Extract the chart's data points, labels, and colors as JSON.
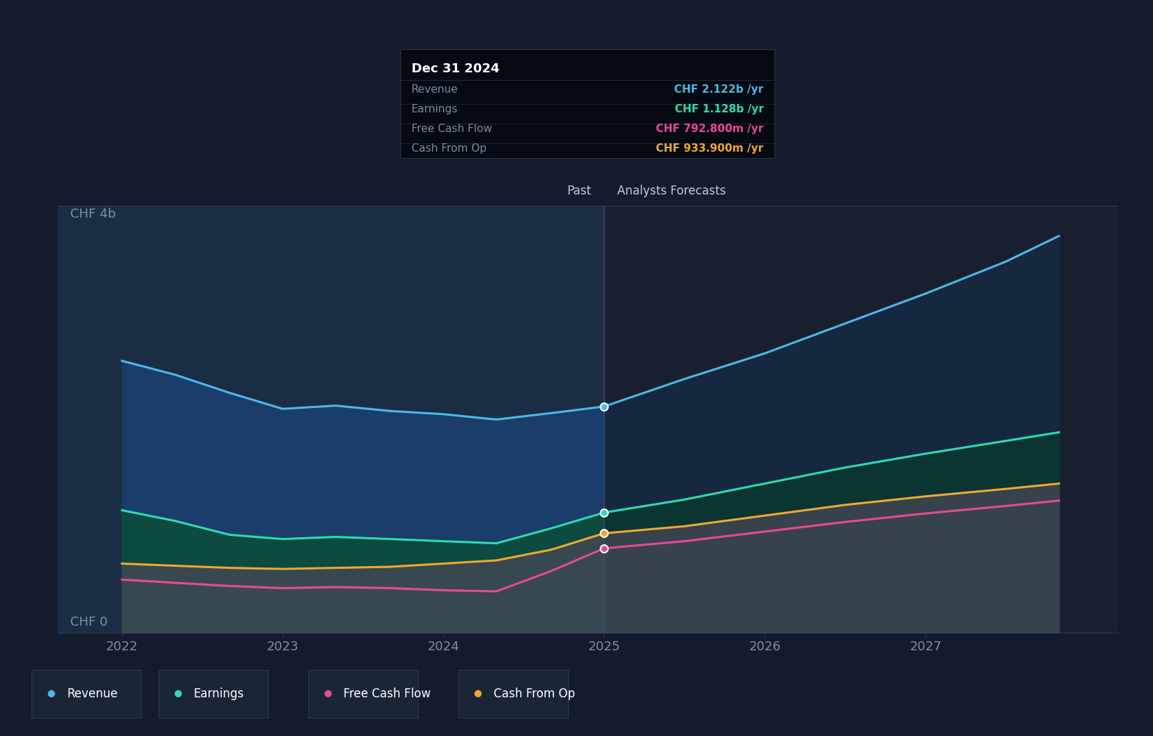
{
  "bg_color": "#141b2d",
  "plot_bg_past": "#1b2d45",
  "plot_bg_forecast": "#182030",
  "grid_color": "#2a3a55",
  "x_years": [
    2022.0,
    2022.33,
    2022.67,
    2023.0,
    2023.33,
    2023.67,
    2024.0,
    2024.33,
    2024.67,
    2025.0,
    2025.5,
    2026.0,
    2026.5,
    2027.0,
    2027.5,
    2027.83
  ],
  "x_ticks": [
    2022,
    2023,
    2024,
    2025,
    2026,
    2027
  ],
  "x_min": 2021.6,
  "x_max": 2028.2,
  "y_min": 0.0,
  "y_max": 4.0,
  "past_end": 2025.0,
  "revenue": [
    2.55,
    2.42,
    2.25,
    2.1,
    2.13,
    2.08,
    2.05,
    2.0,
    2.06,
    2.122,
    2.38,
    2.62,
    2.9,
    3.18,
    3.48,
    3.72
  ],
  "earnings": [
    1.15,
    1.05,
    0.92,
    0.88,
    0.9,
    0.88,
    0.86,
    0.84,
    0.98,
    1.128,
    1.25,
    1.4,
    1.55,
    1.68,
    1.8,
    1.88
  ],
  "free_cash_flow": [
    0.5,
    0.47,
    0.44,
    0.42,
    0.43,
    0.42,
    0.4,
    0.39,
    0.58,
    0.7928,
    0.86,
    0.95,
    1.04,
    1.12,
    1.19,
    1.24
  ],
  "cash_from_op": [
    0.65,
    0.63,
    0.61,
    0.6,
    0.61,
    0.62,
    0.65,
    0.68,
    0.78,
    0.9339,
    1.0,
    1.1,
    1.2,
    1.28,
    1.35,
    1.4
  ],
  "revenue_color": "#4db8e8",
  "earnings_color": "#2ddbb4",
  "fcf_color": "#e8489a",
  "cfo_color": "#f0a830",
  "tooltip_title": "Dec 31 2024",
  "tooltip_items": [
    {
      "label": "Revenue",
      "value": "CHF 2.122b /yr",
      "color": "#4db8e8"
    },
    {
      "label": "Earnings",
      "value": "CHF 1.128b /yr",
      "color": "#2ddbb4"
    },
    {
      "label": "Free Cash Flow",
      "value": "CHF 792.800m /yr",
      "color": "#e8489a"
    },
    {
      "label": "Cash From Op",
      "value": "CHF 933.900m /yr",
      "color": "#f0a830"
    }
  ],
  "legend_items": [
    {
      "label": "Revenue",
      "color": "#4db8e8"
    },
    {
      "label": "Earnings",
      "color": "#2ddbb4"
    },
    {
      "label": "Free Cash Flow",
      "color": "#e8489a"
    },
    {
      "label": "Cash From Op",
      "color": "#f0a830"
    }
  ]
}
